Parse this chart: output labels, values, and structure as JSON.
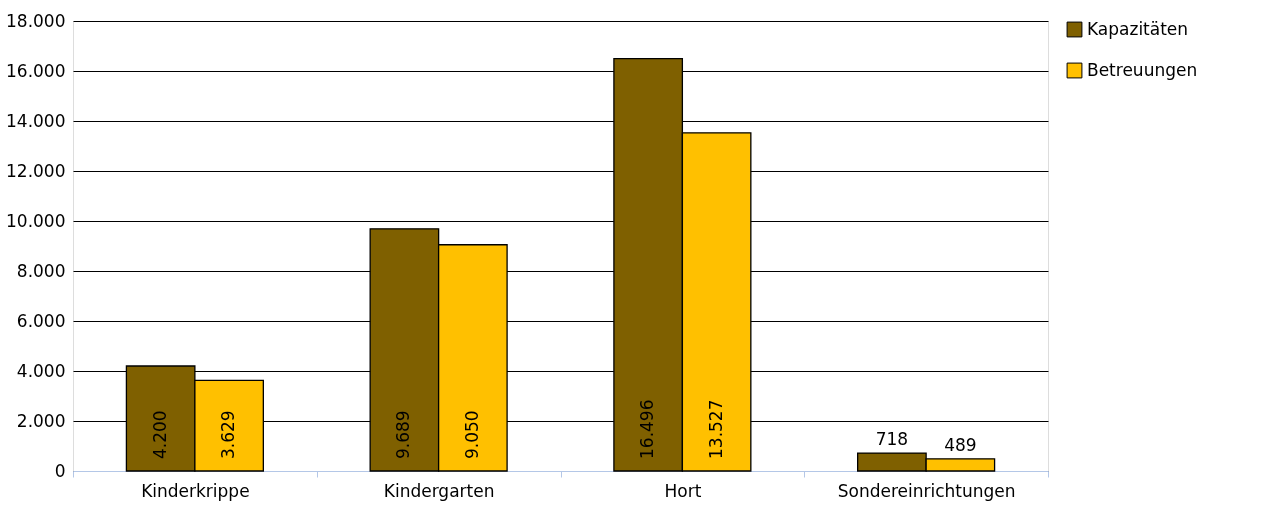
{
  "chart_data": {
    "type": "bar",
    "categories": [
      "Kinderkrippe",
      "Kindergarten",
      "Hort",
      "Sondereinrichtungen"
    ],
    "series": [
      {
        "name": "Kapazitäten",
        "color": "#7f6000",
        "values": [
          4200,
          9689,
          16496,
          718
        ],
        "value_labels": [
          "4.200",
          "9.689",
          "16.496",
          "718"
        ]
      },
      {
        "name": "Betreuungen",
        "color": "#ffc000",
        "values": [
          3629,
          9050,
          13527,
          489
        ],
        "value_labels": [
          "3.629",
          "9.050",
          "13.527",
          "489"
        ]
      }
    ],
    "ylim": [
      0,
      18000
    ],
    "yticks": [
      0,
      {
        "value": 2000,
        "label": "2.000"
      },
      {
        "value": 4000,
        "label": "4.000"
      },
      {
        "value": 6000,
        "label": "6.000"
      },
      {
        "value": 8000,
        "label": "8.000"
      },
      {
        "value": 10000,
        "label": "10.000"
      },
      {
        "value": 12000,
        "label": "12.000"
      },
      {
        "value": 14000,
        "label": "14.000"
      },
      {
        "value": 16000,
        "label": "16.000"
      },
      {
        "value": 18000,
        "label": "18.000"
      }
    ],
    "grid": "y",
    "legend": "right"
  }
}
